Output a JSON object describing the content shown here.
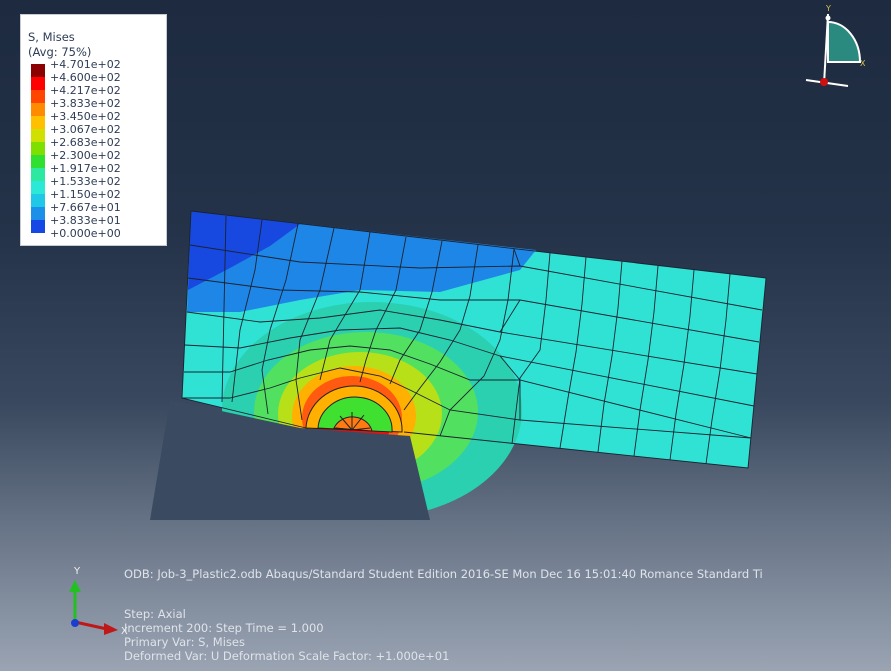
{
  "legend": {
    "title": "S, Mises",
    "avg": "(Avg: 75%)",
    "entries": [
      {
        "label": "+4.701e+02",
        "color": "#8b0000"
      },
      {
        "label": "+4.600e+02",
        "color": "#ff0000"
      },
      {
        "label": "+4.217e+02",
        "color": "#ff4500"
      },
      {
        "label": "+3.833e+02",
        "color": "#ff8c00"
      },
      {
        "label": "+3.450e+02",
        "color": "#ffc000"
      },
      {
        "label": "+3.067e+02",
        "color": "#d0e000"
      },
      {
        "label": "+2.683e+02",
        "color": "#7fe000"
      },
      {
        "label": "+2.300e+02",
        "color": "#30e030"
      },
      {
        "label": "+1.917e+02",
        "color": "#2ce8a0"
      },
      {
        "label": "+1.533e+02",
        "color": "#2ce8d6"
      },
      {
        "label": "+1.150e+02",
        "color": "#20c8e8"
      },
      {
        "label": "+7.667e+01",
        "color": "#1c90e8"
      },
      {
        "label": "+3.833e+01",
        "color": "#1648e6"
      },
      {
        "label": "+0.000e+00",
        "color": "#0000ff"
      }
    ]
  },
  "info": {
    "odb": "ODB: Job-3_Plastic2.odb    Abaqus/Standard Student Edition 2016-SE    Mon Dec 16 15:01:40 Romance Standard Ti",
    "step": "Step: Axial",
    "increment": "Increment    200: Step Time =    1.000",
    "primary": "Primary Var: S, Mises",
    "deformed": "Deformed Var: U   Deformation Scale Factor: +1.000e+01"
  },
  "triad": {
    "y": "Y",
    "x": "X",
    "y_color": "#22c022",
    "x_color": "#c01818",
    "z_color": "#1a3fd0"
  },
  "viewcube": {
    "y": "Y",
    "x": "X"
  }
}
